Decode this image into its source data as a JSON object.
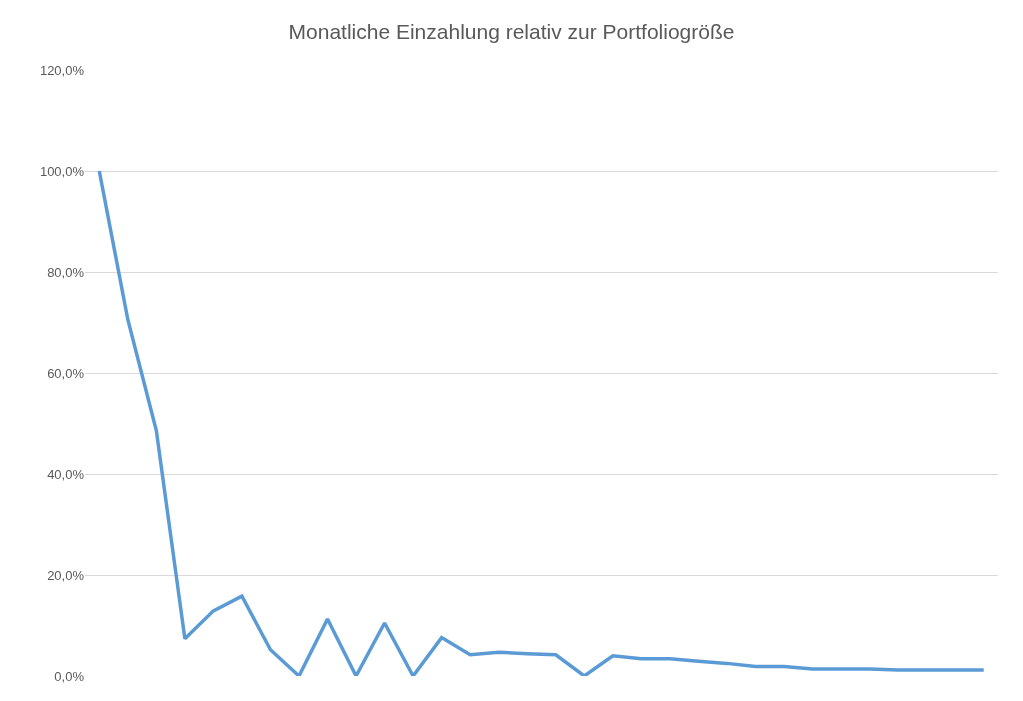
{
  "chart_data": {
    "type": "line",
    "title": "Monatliche Einzahlung relativ zur Portfoliogröße",
    "categories": [
      null,
      null,
      null,
      null,
      null,
      null,
      null,
      null,
      null,
      null,
      null,
      null,
      null,
      null,
      null,
      null,
      null,
      null,
      null,
      null,
      null,
      null,
      null,
      null,
      null,
      null,
      null,
      null,
      null,
      null,
      null,
      null
    ],
    "series": [
      {
        "color": "#5b9bd5",
        "values": [
          100,
          70.6,
          48.6,
          7.4,
          12.9,
          15.8,
          5.2,
          0,
          11.3,
          0,
          10.5,
          0,
          7.6,
          4.2,
          4.7,
          4.4,
          4.2,
          0,
          4.0,
          3.4,
          3.4,
          2.9,
          2.5,
          1.9,
          1.9,
          1.4,
          1.4,
          1.4,
          1.2,
          1.2,
          1.2,
          1.2
        ]
      }
    ],
    "ylim": [
      0,
      120
    ],
    "yticks": [
      {
        "value": 0,
        "label": "0,0%"
      },
      {
        "value": 20,
        "label": "20,0%"
      },
      {
        "value": 40,
        "label": "40,0%"
      },
      {
        "value": 60,
        "label": "60,0%"
      },
      {
        "value": 80,
        "label": "80,0%"
      },
      {
        "value": 100,
        "label": "100,0%"
      },
      {
        "value": 120,
        "label": "120,0%"
      }
    ],
    "grid": "y",
    "legend": false,
    "marker": "none",
    "line_style": "solid"
  }
}
